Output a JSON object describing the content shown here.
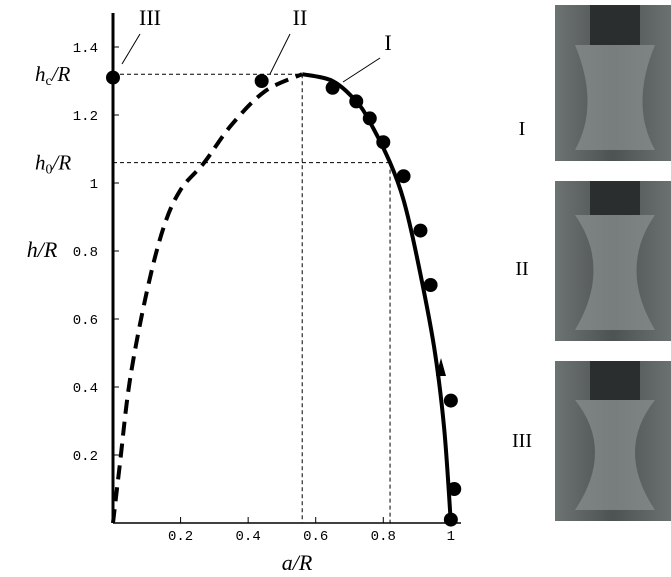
{
  "chart_data": {
    "type": "line",
    "x_label": "a/R",
    "y_label": "h/R",
    "xlim": [
      0,
      1.03
    ],
    "ylim": [
      0,
      1.5
    ],
    "xticks": [
      0.2,
      0.4,
      0.6,
      0.8,
      1
    ],
    "yticks": [
      0.2,
      0.4,
      0.6,
      0.8,
      1,
      1.2,
      1.4
    ],
    "series": [
      {
        "type": "line",
        "color": "#000000",
        "dashed": true,
        "x": [
          0,
          0.02,
          0.05,
          0.1,
          0.15,
          0.2,
          0.27,
          0.35,
          0.45,
          0.56
        ],
        "values": [
          0,
          0.17,
          0.42,
          0.68,
          0.87,
          0.98,
          1.06,
          1.17,
          1.27,
          1.32
        ]
      },
      {
        "type": "line",
        "color": "#000000",
        "dashed": false,
        "x": [
          0.56,
          0.65,
          0.72,
          0.76,
          0.82,
          0.86,
          0.9,
          0.95,
          0.98,
          1.0
        ],
        "values": [
          1.32,
          1.3,
          1.24,
          1.18,
          1.06,
          0.95,
          0.78,
          0.52,
          0.28,
          0
        ]
      },
      {
        "type": "scatter",
        "color": "#000000",
        "x": [
          0,
          0.44,
          0.65,
          0.72,
          0.76,
          0.8,
          0.86,
          0.91,
          0.94,
          1.0,
          1.01,
          1.0
        ],
        "values": [
          1.31,
          1.3,
          1.28,
          1.24,
          1.19,
          1.12,
          1.02,
          0.86,
          0.7,
          0.36,
          0.1,
          0.01
        ]
      }
    ],
    "reference_levels": [
      {
        "base": "h",
        "sub": "c",
        "rest": "/R",
        "value": 1.32,
        "x": 0.56
      },
      {
        "base": "h",
        "sub": "0",
        "rest": "/R",
        "value": 1.06,
        "x": 0.82
      }
    ],
    "annotations": [
      "III",
      "II",
      "I"
    ],
    "photo_labels": [
      "I",
      "II",
      "III"
    ]
  }
}
